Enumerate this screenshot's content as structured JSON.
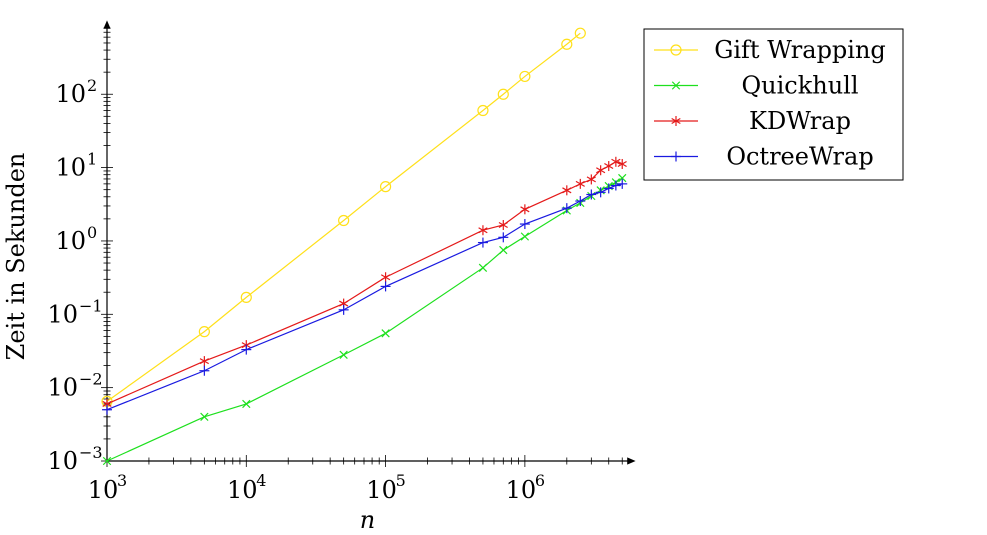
{
  "chart_data": {
    "type": "line",
    "title": "",
    "xlabel": "n",
    "ylabel": "Zeit in Sekunden",
    "x_scale": "log",
    "y_scale": "log",
    "xlim": [
      1000,
      5500000
    ],
    "ylim": [
      0.001,
      800
    ],
    "x_ticks": [
      {
        "value": 1000,
        "base": "10",
        "exp": "3"
      },
      {
        "value": 10000,
        "base": "10",
        "exp": "4"
      },
      {
        "value": 100000,
        "base": "10",
        "exp": "5"
      },
      {
        "value": 1000000,
        "base": "10",
        "exp": "6"
      }
    ],
    "y_ticks": [
      {
        "value": 0.001,
        "base": "10",
        "exp": "−3"
      },
      {
        "value": 0.01,
        "base": "10",
        "exp": "−2"
      },
      {
        "value": 0.1,
        "base": "10",
        "exp": "−1"
      },
      {
        "value": 1,
        "base": "10",
        "exp": "0"
      },
      {
        "value": 10,
        "base": "10",
        "exp": "1"
      },
      {
        "value": 100,
        "base": "10",
        "exp": "2"
      }
    ],
    "grid": false,
    "legend_position": "top-right-outside",
    "series": [
      {
        "name": "Gift Wrapping",
        "color": "#ffe01a",
        "marker": "circle",
        "x": [
          1000,
          5000,
          10000,
          50000,
          100000,
          500000,
          700000,
          1000000,
          2000000,
          2500000
        ],
        "y": [
          0.0065,
          0.058,
          0.17,
          1.9,
          5.5,
          60,
          100,
          175,
          480,
          680
        ]
      },
      {
        "name": "Quickhull",
        "color": "#1ee01e",
        "marker": "x",
        "x": [
          1000,
          5000,
          10000,
          50000,
          100000,
          500000,
          700000,
          1000000,
          2000000,
          2500000,
          3000000,
          3500000,
          4000000,
          4500000,
          5000000
        ],
        "y": [
          0.001,
          0.004,
          0.006,
          0.028,
          0.055,
          0.43,
          0.75,
          1.15,
          2.6,
          3.3,
          4.1,
          4.9,
          5.6,
          6.3,
          7.2
        ]
      },
      {
        "name": "KDWrap",
        "color": "#e41a1a",
        "marker": "asterisk",
        "x": [
          1000,
          5000,
          10000,
          50000,
          100000,
          500000,
          700000,
          1000000,
          2000000,
          2500000,
          3000000,
          3500000,
          4000000,
          4500000,
          5000000
        ],
        "y": [
          0.006,
          0.023,
          0.038,
          0.14,
          0.32,
          1.4,
          1.65,
          2.7,
          4.9,
          6.0,
          6.9,
          9.2,
          10.5,
          12,
          11.2
        ]
      },
      {
        "name": "OctreeWrap",
        "color": "#1a1ae0",
        "marker": "plus",
        "x": [
          1000,
          5000,
          10000,
          50000,
          100000,
          500000,
          700000,
          1000000,
          2000000,
          2500000,
          3000000,
          3500000,
          4000000,
          4500000,
          5000000
        ],
        "y": [
          0.005,
          0.017,
          0.033,
          0.115,
          0.24,
          0.95,
          1.12,
          1.7,
          2.8,
          3.5,
          4.3,
          4.6,
          5.2,
          5.7,
          6.0
        ]
      }
    ]
  }
}
